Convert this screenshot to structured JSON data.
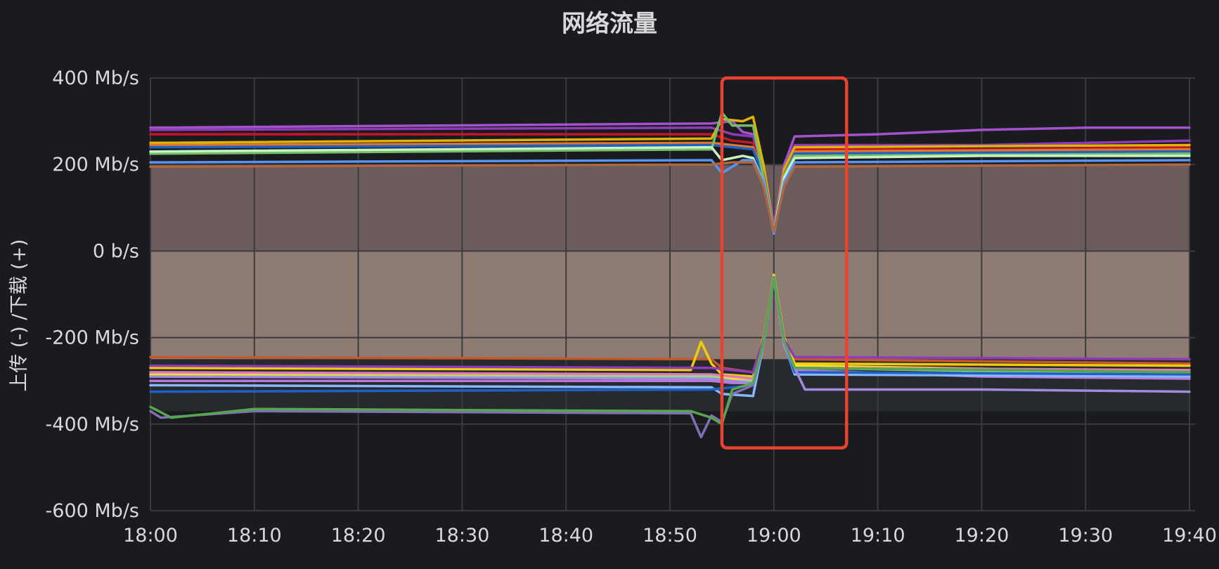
{
  "panel": {
    "title": "网络流量"
  },
  "chart_data": {
    "type": "line",
    "title": "网络流量",
    "xlabel": "",
    "ylabel": "上传 (-) /下载 (+)",
    "x_ticks": [
      "18:00",
      "18:10",
      "18:20",
      "18:30",
      "18:40",
      "18:50",
      "19:00",
      "19:10",
      "19:20",
      "19:30",
      "19:40"
    ],
    "y_ticks": [
      "400 Mb/s",
      "200 Mb/s",
      "0 b/s",
      "-200 Mb/s",
      "-400 Mb/s",
      "-600 Mb/s"
    ],
    "xlim": [
      "18:00",
      "19:40"
    ],
    "ylim": [
      -600,
      400
    ],
    "unit": "Mb/s",
    "grid": true,
    "legend": "none",
    "highlight": {
      "from": "18:55",
      "to": "19:07",
      "ymin": -455,
      "ymax": 400,
      "color": "#e8432f"
    },
    "colors": {
      "background": "#1a1b1e",
      "grid": "#3a3b3f",
      "download_fill": "#6b5b5b",
      "upload_fill": "#8e7b73",
      "lower_fill": "#262a2e"
    },
    "series": [
      {
        "color": "#a352cc",
        "values": [
          {
            "x": "18:00",
            "y": 285
          },
          {
            "x": "18:54",
            "y": 295
          },
          {
            "x": "18:56",
            "y": 300
          },
          {
            "x": "18:57",
            "y": 275
          },
          {
            "x": "18:58",
            "y": 270
          },
          {
            "x": "18:59",
            "y": 200
          },
          {
            "x": "19:00",
            "y": 60
          },
          {
            "x": "19:01",
            "y": 200
          },
          {
            "x": "19:02",
            "y": 265
          },
          {
            "x": "19:10",
            "y": 270
          },
          {
            "x": "19:20",
            "y": 280
          },
          {
            "x": "19:30",
            "y": 285
          },
          {
            "x": "19:40",
            "y": 285
          }
        ]
      },
      {
        "color": "#8f3bb8",
        "values": [
          {
            "x": "18:00",
            "y": 280
          },
          {
            "x": "18:54",
            "y": 285
          },
          {
            "x": "18:56",
            "y": 270
          },
          {
            "x": "18:58",
            "y": 265
          },
          {
            "x": "18:59",
            "y": 190
          },
          {
            "x": "19:00",
            "y": 55
          },
          {
            "x": "19:01",
            "y": 190
          },
          {
            "x": "19:02",
            "y": 245
          },
          {
            "x": "19:20",
            "y": 245
          },
          {
            "x": "19:40",
            "y": 255
          }
        ]
      },
      {
        "color": "#c4162a",
        "values": [
          {
            "x": "18:00",
            "y": 270
          },
          {
            "x": "18:54",
            "y": 270
          },
          {
            "x": "18:56",
            "y": 255
          },
          {
            "x": "18:58",
            "y": 250
          },
          {
            "x": "18:59",
            "y": 180
          },
          {
            "x": "19:00",
            "y": 55
          },
          {
            "x": "19:01",
            "y": 180
          },
          {
            "x": "19:02",
            "y": 235
          },
          {
            "x": "19:20",
            "y": 235
          },
          {
            "x": "19:40",
            "y": 240
          }
        ]
      },
      {
        "color": "#e0b400",
        "values": [
          {
            "x": "18:00",
            "y": 250
          },
          {
            "x": "18:54",
            "y": 260
          },
          {
            "x": "18:55",
            "y": 305
          },
          {
            "x": "18:57",
            "y": 300
          },
          {
            "x": "18:58",
            "y": 310
          },
          {
            "x": "18:59",
            "y": 200
          },
          {
            "x": "19:00",
            "y": 50
          },
          {
            "x": "19:01",
            "y": 190
          },
          {
            "x": "19:02",
            "y": 240
          },
          {
            "x": "19:40",
            "y": 245
          }
        ]
      },
      {
        "color": "#e0752d",
        "values": [
          {
            "x": "18:00",
            "y": 245
          },
          {
            "x": "18:54",
            "y": 250
          },
          {
            "x": "18:56",
            "y": 245
          },
          {
            "x": "18:58",
            "y": 240
          },
          {
            "x": "18:59",
            "y": 180
          },
          {
            "x": "19:00",
            "y": 50
          },
          {
            "x": "19:01",
            "y": 180
          },
          {
            "x": "19:02",
            "y": 230
          },
          {
            "x": "19:40",
            "y": 235
          }
        ]
      },
      {
        "color": "#1f60c4",
        "values": [
          {
            "x": "18:00",
            "y": 240
          },
          {
            "x": "18:54",
            "y": 245
          },
          {
            "x": "18:56",
            "y": 240
          },
          {
            "x": "18:58",
            "y": 235
          },
          {
            "x": "18:59",
            "y": 175
          },
          {
            "x": "19:00",
            "y": 50
          },
          {
            "x": "19:01",
            "y": 175
          },
          {
            "x": "19:02",
            "y": 225
          },
          {
            "x": "19:40",
            "y": 230
          }
        ]
      },
      {
        "color": "#73bf69",
        "values": [
          {
            "x": "18:00",
            "y": 225
          },
          {
            "x": "18:54",
            "y": 235
          },
          {
            "x": "18:55",
            "y": 320
          },
          {
            "x": "18:56",
            "y": 290
          },
          {
            "x": "18:58",
            "y": 290
          },
          {
            "x": "18:59",
            "y": 170
          },
          {
            "x": "19:00",
            "y": 45
          },
          {
            "x": "19:01",
            "y": 175
          },
          {
            "x": "19:02",
            "y": 220
          },
          {
            "x": "19:40",
            "y": 225
          }
        ]
      },
      {
        "color": "#c8f2c2",
        "values": [
          {
            "x": "18:00",
            "y": 230
          },
          {
            "x": "18:54",
            "y": 240
          },
          {
            "x": "18:55",
            "y": 210
          },
          {
            "x": "18:57",
            "y": 220
          },
          {
            "x": "18:58",
            "y": 215
          },
          {
            "x": "18:59",
            "y": 160
          },
          {
            "x": "19:00",
            "y": 45
          },
          {
            "x": "19:01",
            "y": 170
          },
          {
            "x": "19:02",
            "y": 215
          },
          {
            "x": "19:20",
            "y": 220
          },
          {
            "x": "19:40",
            "y": 220
          }
        ]
      },
      {
        "color": "#5794f2",
        "values": [
          {
            "x": "18:00",
            "y": 205
          },
          {
            "x": "18:54",
            "y": 210
          },
          {
            "x": "18:55",
            "y": 180
          },
          {
            "x": "18:57",
            "y": 210
          },
          {
            "x": "18:58",
            "y": 210
          },
          {
            "x": "18:59",
            "y": 160
          },
          {
            "x": "19:00",
            "y": 40
          },
          {
            "x": "19:01",
            "y": 160
          },
          {
            "x": "19:02",
            "y": 205
          },
          {
            "x": "19:40",
            "y": 210
          }
        ]
      },
      {
        "color": "#b0663e",
        "values": [
          {
            "x": "18:00",
            "y": 195
          },
          {
            "x": "18:54",
            "y": 200
          },
          {
            "x": "18:56",
            "y": 205
          },
          {
            "x": "18:58",
            "y": 205
          },
          {
            "x": "18:59",
            "y": 150
          },
          {
            "x": "19:00",
            "y": 45
          },
          {
            "x": "19:01",
            "y": 150
          },
          {
            "x": "19:02",
            "y": 195
          },
          {
            "x": "19:40",
            "y": 200
          }
        ]
      },
      {
        "color": "#c4582a",
        "values": [
          {
            "x": "18:00",
            "y": -245
          },
          {
            "x": "18:54",
            "y": -250
          },
          {
            "x": "18:55",
            "y": -270
          },
          {
            "x": "18:58",
            "y": -280
          },
          {
            "x": "18:59",
            "y": -200
          },
          {
            "x": "19:00",
            "y": -60
          },
          {
            "x": "19:01",
            "y": -200
          },
          {
            "x": "19:02",
            "y": -250
          },
          {
            "x": "19:40",
            "y": -260
          }
        ]
      },
      {
        "color": "#f2cc0c",
        "values": [
          {
            "x": "18:00",
            "y": -270
          },
          {
            "x": "18:52",
            "y": -275
          },
          {
            "x": "18:53",
            "y": -210
          },
          {
            "x": "18:54",
            "y": -260
          },
          {
            "x": "18:55",
            "y": -285
          },
          {
            "x": "18:58",
            "y": -290
          },
          {
            "x": "18:59",
            "y": -200
          },
          {
            "x": "19:00",
            "y": -60
          },
          {
            "x": "19:01",
            "y": -200
          },
          {
            "x": "19:02",
            "y": -260
          },
          {
            "x": "19:40",
            "y": -265
          }
        ]
      },
      {
        "color": "#fade2a",
        "values": [
          {
            "x": "18:00",
            "y": -285
          },
          {
            "x": "18:54",
            "y": -290
          },
          {
            "x": "18:56",
            "y": -295
          },
          {
            "x": "18:58",
            "y": -300
          },
          {
            "x": "18:59",
            "y": -210
          },
          {
            "x": "19:00",
            "y": -55
          },
          {
            "x": "19:01",
            "y": -200
          },
          {
            "x": "19:02",
            "y": -265
          },
          {
            "x": "19:40",
            "y": -280
          }
        ]
      },
      {
        "color": "#de7ab8",
        "values": [
          {
            "x": "18:00",
            "y": -280
          },
          {
            "x": "18:54",
            "y": -285
          },
          {
            "x": "18:56",
            "y": -290
          },
          {
            "x": "18:58",
            "y": -295
          },
          {
            "x": "18:59",
            "y": -205
          },
          {
            "x": "19:00",
            "y": -60
          },
          {
            "x": "19:01",
            "y": -205
          },
          {
            "x": "19:02",
            "y": -270
          },
          {
            "x": "19:40",
            "y": -275
          }
        ]
      },
      {
        "color": "#b877d9",
        "values": [
          {
            "x": "18:00",
            "y": -300
          },
          {
            "x": "18:54",
            "y": -300
          },
          {
            "x": "18:56",
            "y": -305
          },
          {
            "x": "18:58",
            "y": -305
          },
          {
            "x": "18:59",
            "y": -210
          },
          {
            "x": "19:00",
            "y": -60
          },
          {
            "x": "19:01",
            "y": -210
          },
          {
            "x": "19:02",
            "y": -275
          },
          {
            "x": "19:20",
            "y": -290
          },
          {
            "x": "19:40",
            "y": -295
          }
        ]
      },
      {
        "color": "#96d98d",
        "values": [
          {
            "x": "18:00",
            "y": -290
          },
          {
            "x": "18:54",
            "y": -290
          },
          {
            "x": "18:56",
            "y": -300
          },
          {
            "x": "18:58",
            "y": -300
          },
          {
            "x": "18:59",
            "y": -210
          },
          {
            "x": "19:00",
            "y": -60
          },
          {
            "x": "19:01",
            "y": -210
          },
          {
            "x": "19:02",
            "y": -270
          },
          {
            "x": "19:40",
            "y": -285
          }
        ]
      },
      {
        "color": "#8ab8ff",
        "values": [
          {
            "x": "18:00",
            "y": -310
          },
          {
            "x": "18:54",
            "y": -315
          },
          {
            "x": "18:55",
            "y": -330
          },
          {
            "x": "18:58",
            "y": -335
          },
          {
            "x": "18:59",
            "y": -215
          },
          {
            "x": "19:00",
            "y": -60
          },
          {
            "x": "19:01",
            "y": -215
          },
          {
            "x": "19:02",
            "y": -285
          },
          {
            "x": "19:40",
            "y": -290
          }
        ]
      },
      {
        "color": "#1f60c4",
        "values": [
          {
            "x": "18:00",
            "y": -325
          },
          {
            "x": "18:54",
            "y": -320
          },
          {
            "x": "18:56",
            "y": -315
          },
          {
            "x": "18:58",
            "y": -310
          },
          {
            "x": "18:59",
            "y": -215
          },
          {
            "x": "19:00",
            "y": -60
          },
          {
            "x": "19:01",
            "y": -215
          },
          {
            "x": "19:02",
            "y": -280
          },
          {
            "x": "19:40",
            "y": -285
          }
        ]
      },
      {
        "color": "#a18ae0",
        "values": [
          {
            "x": "18:00",
            "y": -290
          },
          {
            "x": "18:54",
            "y": -295
          },
          {
            "x": "18:56",
            "y": -300
          },
          {
            "x": "18:58",
            "y": -305
          },
          {
            "x": "18:59",
            "y": -215
          },
          {
            "x": "19:00",
            "y": -65
          },
          {
            "x": "19:01",
            "y": -220
          },
          {
            "x": "19:03",
            "y": -320
          },
          {
            "x": "19:20",
            "y": -320
          },
          {
            "x": "19:40",
            "y": -325
          }
        ]
      },
      {
        "color": "#8f3bb8",
        "values": [
          {
            "x": "18:00",
            "y": -265
          },
          {
            "x": "18:54",
            "y": -270
          },
          {
            "x": "18:56",
            "y": -275
          },
          {
            "x": "18:58",
            "y": -280
          },
          {
            "x": "18:59",
            "y": -205
          },
          {
            "x": "19:00",
            "y": -60
          },
          {
            "x": "19:01",
            "y": -205
          },
          {
            "x": "19:02",
            "y": -245
          },
          {
            "x": "19:40",
            "y": -250
          }
        ]
      },
      {
        "color": "#806eb7",
        "values": [
          {
            "x": "18:00",
            "y": -370
          },
          {
            "x": "18:01",
            "y": -385
          },
          {
            "x": "18:10",
            "y": -370
          },
          {
            "x": "18:52",
            "y": -375
          },
          {
            "x": "18:53",
            "y": -430
          },
          {
            "x": "18:54",
            "y": -380
          },
          {
            "x": "18:55",
            "y": -395
          },
          {
            "x": "18:56",
            "y": -330
          },
          {
            "x": "18:58",
            "y": -310
          },
          {
            "x": "18:59",
            "y": -210
          },
          {
            "x": "19:00",
            "y": -60
          },
          {
            "x": "19:01",
            "y": -210
          },
          {
            "x": "19:02",
            "y": -270
          },
          {
            "x": "19:40",
            "y": -280
          }
        ]
      },
      {
        "color": "#56a64b",
        "values": [
          {
            "x": "18:00",
            "y": -360
          },
          {
            "x": "18:02",
            "y": -385
          },
          {
            "x": "18:10",
            "y": -365
          },
          {
            "x": "18:52",
            "y": -370
          },
          {
            "x": "18:54",
            "y": -385
          },
          {
            "x": "18:55",
            "y": -400
          },
          {
            "x": "18:56",
            "y": -320
          },
          {
            "x": "18:58",
            "y": -305
          },
          {
            "x": "18:59",
            "y": -210
          },
          {
            "x": "19:00",
            "y": -60
          },
          {
            "x": "19:01",
            "y": -210
          },
          {
            "x": "19:02",
            "y": -270
          },
          {
            "x": "19:40",
            "y": -280
          }
        ]
      }
    ]
  }
}
